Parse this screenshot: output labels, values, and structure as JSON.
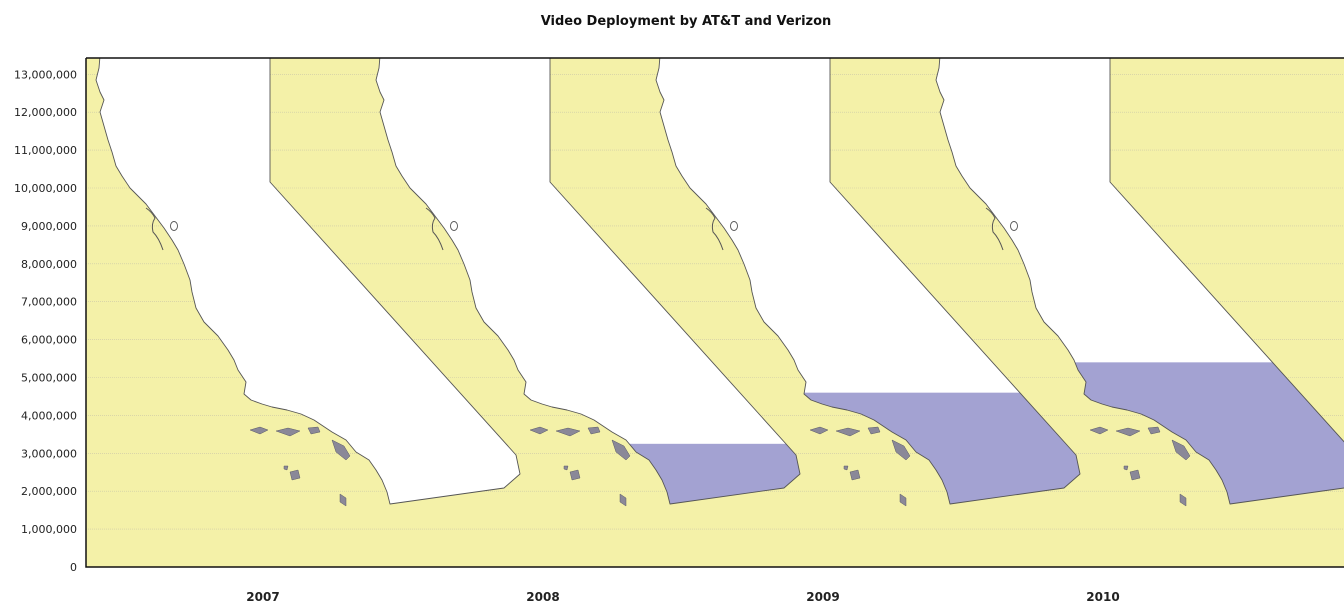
{
  "chart_data": {
    "type": "area",
    "title": "Video Deployment by AT&T and Verizon",
    "xlabel": "",
    "ylabel": "",
    "categories": [
      "2007",
      "2008",
      "2009",
      "2010"
    ],
    "series": [
      {
        "values": [
          1000000,
          3250000,
          4600000,
          5400000
        ]
      }
    ],
    "ylim": [
      0,
      13000000
    ],
    "yticks": [
      "0",
      "1,000,000",
      "2,000,000",
      "3,000,000",
      "4,000,000",
      "5,000,000",
      "6,000,000",
      "7,000,000",
      "8,000,000",
      "9,000,000",
      "10,000,000",
      "11,000,000",
      "12,000,000",
      "13,000,000"
    ],
    "grid": true,
    "legend": "none",
    "colors": {
      "background": "#f4f1a8",
      "map": "#ffffff",
      "fill": "#a3a2d2",
      "outline": "#555555",
      "grid": "#c9c6a8"
    }
  }
}
